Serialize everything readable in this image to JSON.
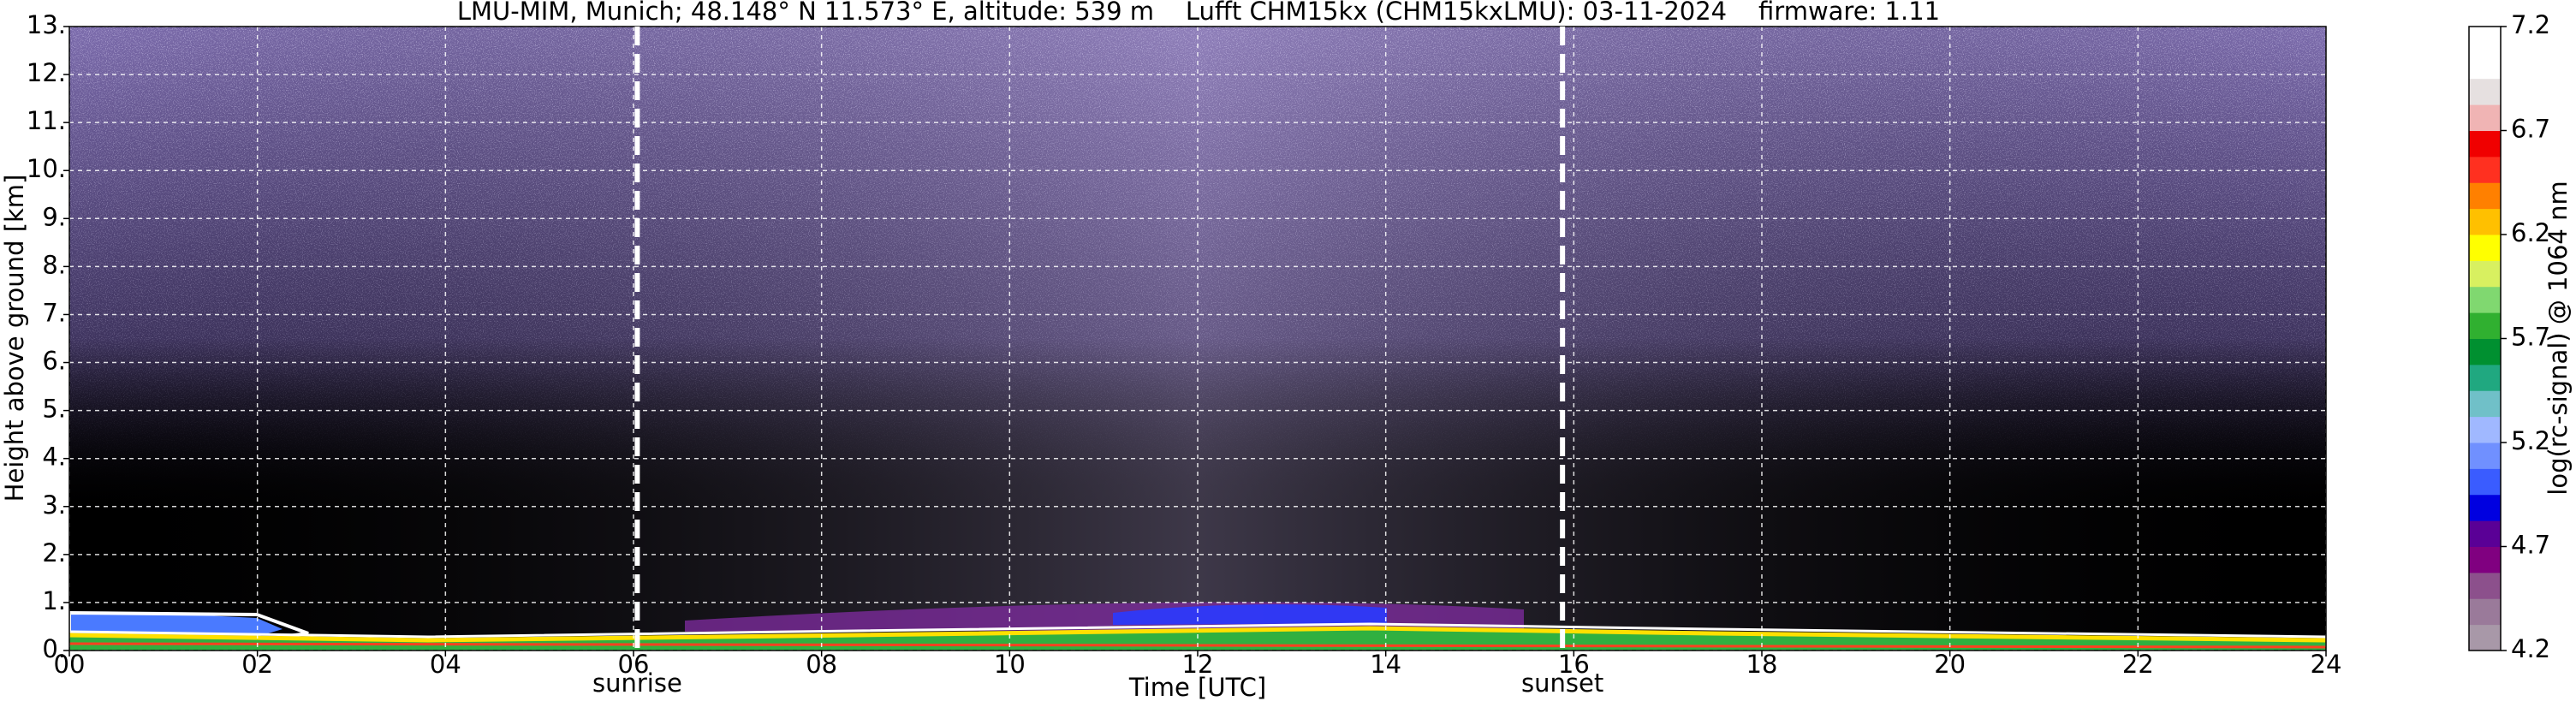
{
  "chart_data": {
    "type": "heatmap",
    "title": "LMU-MIM, Munich; 48.148° N 11.573° E, altitude: 539 m    Lufft CHM15kx (CHM15kxLMU): 03-11-2024    firmware: 1.11",
    "x_label": "Time [UTC]",
    "y_label": "Height above ground [km]",
    "xlim": [
      0,
      24
    ],
    "xticks": [
      {
        "value": 0,
        "label": "00"
      },
      {
        "value": 2,
        "label": "02"
      },
      {
        "value": 4,
        "label": "04"
      },
      {
        "value": 6,
        "label": "06"
      },
      {
        "value": 8,
        "label": "08"
      },
      10,
      12,
      14,
      16,
      18,
      20,
      22,
      24
    ],
    "ylim": [
      0,
      13
    ],
    "yticks": [
      {
        "value": 0,
        "label": "0."
      },
      {
        "value": 1,
        "label": "1."
      },
      {
        "value": 2,
        "label": "2."
      },
      {
        "value": 3,
        "label": "3."
      },
      {
        "value": 4,
        "label": "4."
      },
      {
        "value": 5,
        "label": "5."
      },
      {
        "value": 6,
        "label": "6."
      },
      {
        "value": 7,
        "label": "7."
      },
      {
        "value": 8,
        "label": "8."
      },
      {
        "value": 9,
        "label": "9."
      },
      {
        "value": 10,
        "label": "10."
      },
      {
        "value": 11,
        "label": "11."
      },
      {
        "value": 12,
        "label": "12."
      },
      {
        "value": 13,
        "label": "13."
      }
    ],
    "grid": true,
    "annotations": [
      {
        "text": "sunrise",
        "x": 6.04
      },
      {
        "text": "sunset",
        "x": 15.88
      }
    ],
    "colorbar": {
      "label": "log(rc-signal) @ 1064 nm",
      "lim": [
        4.2,
        7.2
      ],
      "ticks": [
        4.2,
        4.7,
        5.2,
        5.7,
        6.2,
        6.7,
        7.2
      ],
      "colors": [
        "#a898a8",
        "#9a7a9a",
        "#8c508c",
        "#800080",
        "#5a0096",
        "#0000e0",
        "#3a5cff",
        "#7090ff",
        "#a0b8ff",
        "#70c0c8",
        "#20a880",
        "#009030",
        "#30b030",
        "#80d870",
        "#d8f060",
        "#ffff00",
        "#ffc000",
        "#ff8000",
        "#ff3020",
        "#f00000",
        "#f0b4b4",
        "#e6e0e0",
        "#ffffff",
        "#ffffff"
      ]
    }
  }
}
